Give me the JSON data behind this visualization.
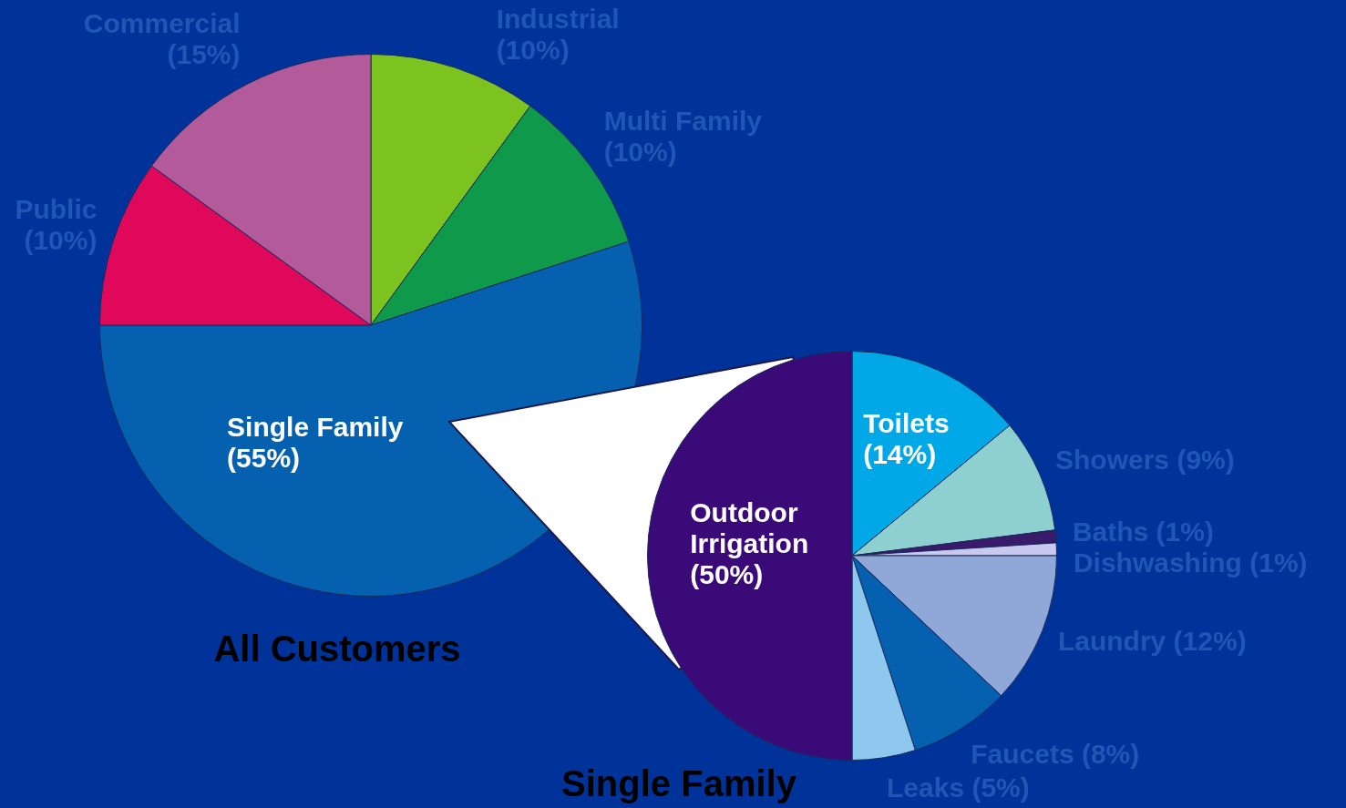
{
  "chart_data": [
    {
      "type": "pie",
      "title": "All Customers",
      "categories": [
        "Industrial",
        "Multi Family",
        "Single Family",
        "Public",
        "Commercial"
      ],
      "values": [
        10,
        10,
        55,
        10,
        15
      ],
      "value_labels": [
        "(10%)",
        "(10%)",
        "(55%)",
        "(10%)",
        "(15%)"
      ],
      "colors": [
        "#7dc31f",
        "#0e9a4a",
        "#0560b0",
        "#e0085a",
        "#b25a9a"
      ]
    },
    {
      "type": "pie",
      "title": "Single Family",
      "categories": [
        "Toilets",
        "Showers",
        "Baths",
        "Dishwashing",
        "Laundry",
        "Faucets",
        "Leaks",
        "Outdoor Irrigation"
      ],
      "values": [
        14,
        9,
        1,
        1,
        12,
        8,
        5,
        50
      ],
      "value_labels": [
        "(14%)",
        "(9%)",
        "(1%)",
        "(1%)",
        "(12%)",
        "(8%)",
        "(5%)",
        "(50%)"
      ],
      "colors": [
        "#00a8e8",
        "#8ecfcf",
        "#3a1a6a",
        "#c8c8f0",
        "#90a8d8",
        "#0560b0",
        "#8ec8ee",
        "#3a0a78"
      ]
    }
  ]
}
